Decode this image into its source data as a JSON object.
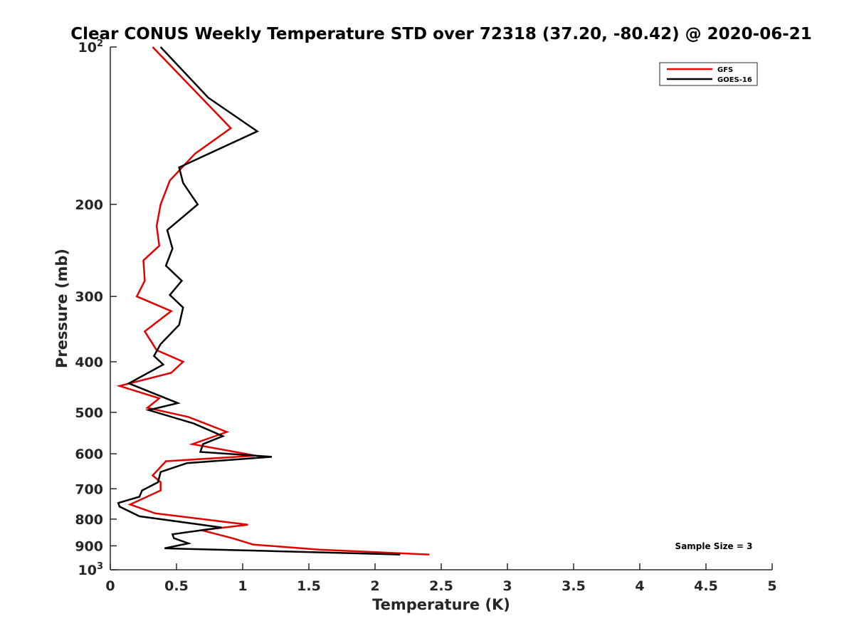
{
  "chart_data": {
    "type": "line",
    "title": "Clear CONUS Weekly Temperature STD over 72318 (37.20, -80.42) @ 2020-06-21",
    "xlabel": "Temperature (K)",
    "ylabel": "Pressure (mb)",
    "xlim": [
      0,
      5
    ],
    "ylim": [
      1000,
      100
    ],
    "yscale": "log",
    "y_reversed": true,
    "x_ticks": [
      "0",
      "0.5",
      "1",
      "1.5",
      "2",
      "2.5",
      "3",
      "3.5",
      "4",
      "4.5",
      "5"
    ],
    "x_tick_values": [
      0,
      0.5,
      1,
      1.5,
      2,
      2.5,
      3,
      3.5,
      4,
      4.5,
      5
    ],
    "y_ticks": [
      {
        "value": 100,
        "base": "10",
        "exp": "2"
      },
      {
        "value": 200,
        "label": "200"
      },
      {
        "value": 300,
        "label": "300"
      },
      {
        "value": 400,
        "label": "400"
      },
      {
        "value": 500,
        "label": "500"
      },
      {
        "value": 600,
        "label": "600"
      },
      {
        "value": 700,
        "label": "700"
      },
      {
        "value": 800,
        "label": "800"
      },
      {
        "value": 900,
        "label": "900"
      },
      {
        "value": 1000,
        "base": "10",
        "exp": "3"
      }
    ],
    "grid": false,
    "legend_position": "top-right",
    "annotation": "Sample Size = 3",
    "series": [
      {
        "name": "GFS",
        "color": "#e00000",
        "points": [
          [
            0.32,
            100
          ],
          [
            0.91,
            143
          ],
          [
            0.64,
            160
          ],
          [
            0.45,
            180
          ],
          [
            0.38,
            200
          ],
          [
            0.35,
            220
          ],
          [
            0.37,
            240
          ],
          [
            0.25,
            256
          ],
          [
            0.26,
            280
          ],
          [
            0.2,
            300
          ],
          [
            0.46,
            320
          ],
          [
            0.26,
            350
          ],
          [
            0.35,
            380
          ],
          [
            0.55,
            400
          ],
          [
            0.46,
            420
          ],
          [
            0.07,
            445
          ],
          [
            0.37,
            470
          ],
          [
            0.28,
            490
          ],
          [
            0.59,
            510
          ],
          [
            0.88,
            545
          ],
          [
            0.62,
            575
          ],
          [
            1.1,
            605
          ],
          [
            0.42,
            620
          ],
          [
            0.32,
            660
          ],
          [
            0.38,
            680
          ],
          [
            0.38,
            705
          ],
          [
            0.15,
            750
          ],
          [
            0.34,
            780
          ],
          [
            1.04,
            820
          ],
          [
            0.69,
            840
          ],
          [
            0.92,
            870
          ],
          [
            1.08,
            895
          ],
          [
            1.58,
            915
          ],
          [
            2.41,
            935
          ]
        ]
      },
      {
        "name": "GOES-16",
        "color": "#000000",
        "points": [
          [
            0.38,
            100
          ],
          [
            0.74,
            125
          ],
          [
            1.11,
            145
          ],
          [
            0.52,
            170
          ],
          [
            0.55,
            182
          ],
          [
            0.66,
            200
          ],
          [
            0.43,
            224
          ],
          [
            0.47,
            243
          ],
          [
            0.42,
            262
          ],
          [
            0.54,
            280
          ],
          [
            0.45,
            298
          ],
          [
            0.55,
            315
          ],
          [
            0.52,
            340
          ],
          [
            0.38,
            370
          ],
          [
            0.33,
            390
          ],
          [
            0.4,
            405
          ],
          [
            0.14,
            440
          ],
          [
            0.51,
            480
          ],
          [
            0.29,
            495
          ],
          [
            0.63,
            525
          ],
          [
            0.85,
            555
          ],
          [
            0.7,
            575
          ],
          [
            0.68,
            595
          ],
          [
            1.22,
            608
          ],
          [
            0.58,
            625
          ],
          [
            0.38,
            650
          ],
          [
            0.36,
            680
          ],
          [
            0.24,
            705
          ],
          [
            0.22,
            725
          ],
          [
            0.06,
            745
          ],
          [
            0.07,
            757
          ],
          [
            0.22,
            790
          ],
          [
            0.84,
            830
          ],
          [
            0.47,
            855
          ],
          [
            0.48,
            870
          ],
          [
            0.59,
            890
          ],
          [
            0.41,
            910
          ],
          [
            1.15,
            920
          ],
          [
            2.19,
            935
          ]
        ]
      }
    ]
  }
}
